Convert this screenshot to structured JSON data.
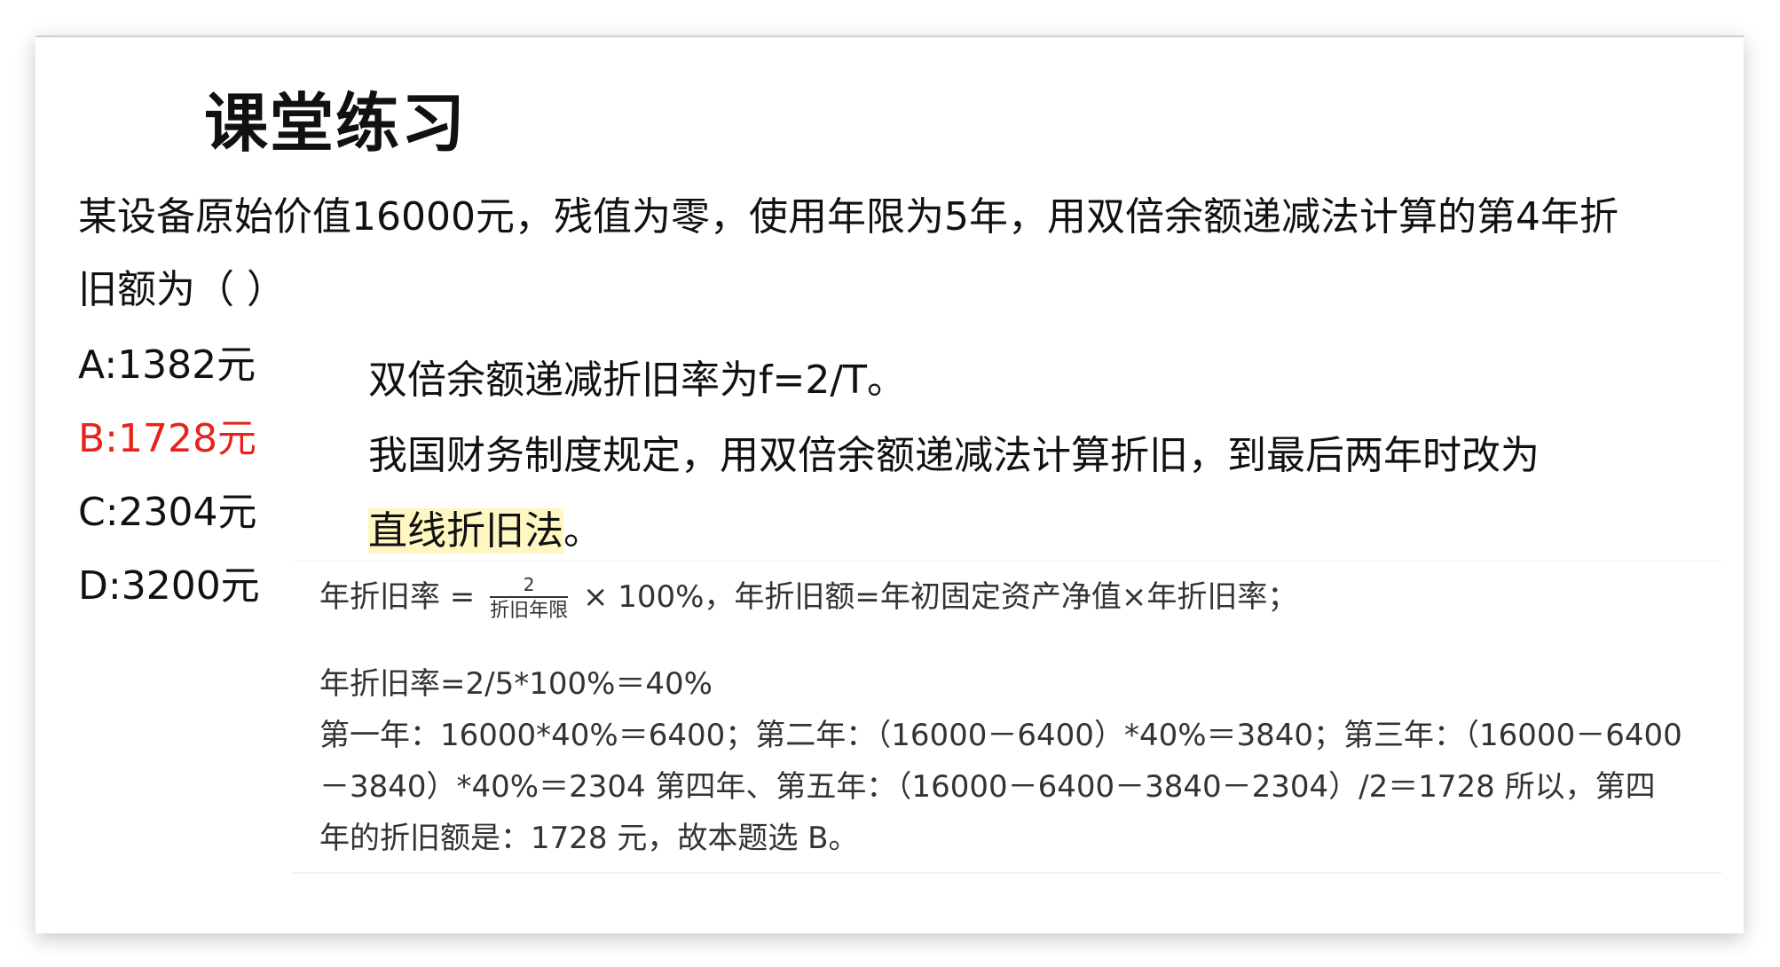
{
  "slide": {
    "title": "课堂练习",
    "question_line1": "某设备原始价值16000元，残值为零，使用年限为5年，用双倍余额递减法计算的第4年折",
    "question_line2": "旧额为（  ）",
    "options": [
      {
        "label": "A:1382元",
        "correct": false
      },
      {
        "label": "B:1728元",
        "correct": true
      },
      {
        "label": "C:2304元",
        "correct": false
      },
      {
        "label": "D:3200元",
        "correct": false
      }
    ],
    "hint": {
      "line1": "双倍余额递减折旧率为f=2/T。",
      "line2": "我国财务制度规定，用双倍余额递减法计算折旧，到最后两年时改为",
      "line3_highlight": "直线折旧法",
      "line3_tail": "。"
    },
    "solution": {
      "formula_prefix": "年折旧率 =",
      "formula_numerator": "2",
      "formula_denominator": "折旧年限",
      "formula_suffix": "× 100%，年折旧额=年初固定资产净值×年折旧率；",
      "line2": "年折旧率=2/5*100%＝40%",
      "line3": "第一年：16000*40%＝6400；第二年：（16000－6400）*40%＝3840；第三年：（16000－6400",
      "line4": "－3840）*40%＝2304 第四年、第五年：（16000－6400－3840－2304）/2＝1728 所以，第四",
      "line5": "年的折旧额是：1728 元，故本题选 B。"
    }
  }
}
